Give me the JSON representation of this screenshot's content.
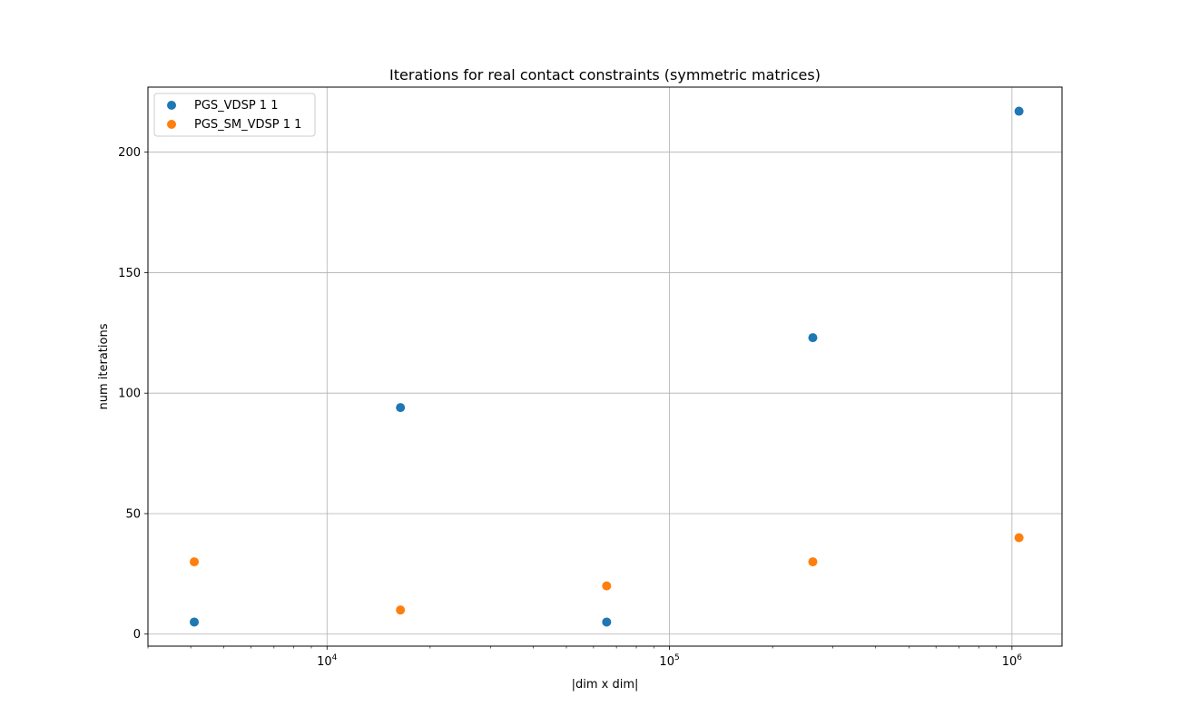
{
  "chart_data": {
    "type": "scatter",
    "title": "Iterations for real contact constraints (symmetric matrices)",
    "xlabel": "|dim x dim|",
    "ylabel": "num iterations",
    "x_scale": "log",
    "xlim": [
      3000,
      1400000
    ],
    "ylim": [
      -5,
      227
    ],
    "grid": true,
    "legend_position": "top-left",
    "x_ticks": [
      {
        "value": 10000,
        "base": "10",
        "exp": "4"
      },
      {
        "value": 100000,
        "base": "10",
        "exp": "5"
      },
      {
        "value": 1000000,
        "base": "10",
        "exp": "6"
      }
    ],
    "y_ticks": [
      {
        "value": 0,
        "label": "0"
      },
      {
        "value": 50,
        "label": "50"
      },
      {
        "value": 100,
        "label": "100"
      },
      {
        "value": 150,
        "label": "150"
      },
      {
        "value": 200,
        "label": "200"
      }
    ],
    "series": [
      {
        "name": "PGS_VDSP 1 1",
        "color": "#1f77b4",
        "x": [
          4096,
          16384,
          65536,
          262144,
          1048576
        ],
        "y": [
          5,
          94,
          5,
          123,
          217
        ]
      },
      {
        "name": "PGS_SM_VDSP 1 1",
        "color": "#ff7f0e",
        "x": [
          4096,
          16384,
          65536,
          262144,
          1048576
        ],
        "y": [
          30,
          10,
          20,
          30,
          40
        ]
      }
    ]
  }
}
